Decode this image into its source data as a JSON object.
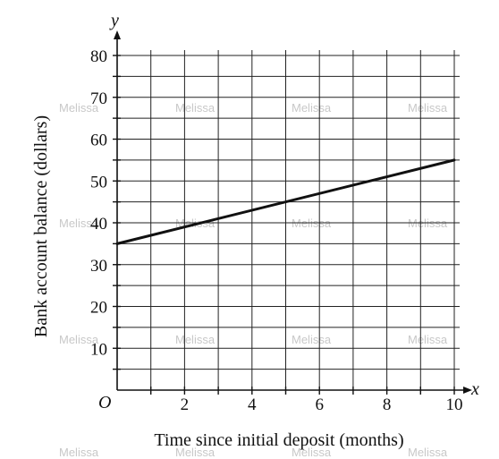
{
  "chart_data": {
    "type": "line",
    "xlabel": "Time since initial deposit (months)",
    "ylabel": "Bank account balance (dollars)",
    "x_axis_var": "x",
    "y_axis_var": "y",
    "origin_label": "O",
    "xlim": [
      0,
      10
    ],
    "ylim": [
      0,
      80
    ],
    "x_grid_step": 1,
    "y_grid_step": 5,
    "x_tick_labels": [
      "2",
      "4",
      "6",
      "8",
      "10"
    ],
    "y_tick_labels": [
      "10",
      "20",
      "30",
      "40",
      "50",
      "60",
      "70",
      "80"
    ],
    "grid": true,
    "series": [
      {
        "x": [
          0,
          10
        ],
        "y": [
          35,
          55
        ]
      }
    ]
  },
  "watermark": {
    "text": "Melissa"
  }
}
